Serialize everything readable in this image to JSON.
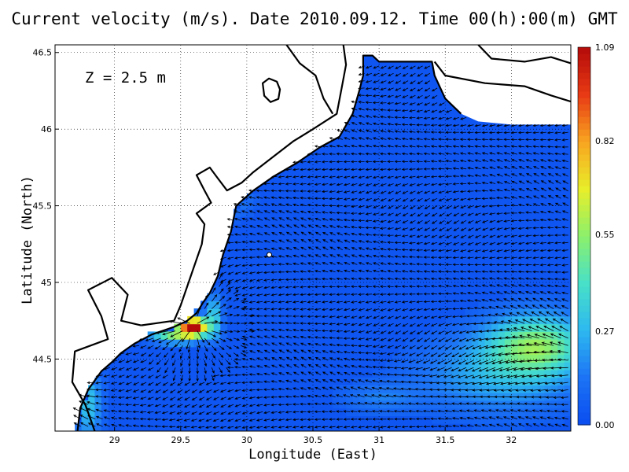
{
  "chart_data": {
    "type": "heatmap",
    "title": "Current velocity (m/s). Date 2010.09.12. Time 00(h):00(m) GMT",
    "xlabel": "Longitude (East)",
    "ylabel": "Latitude (North)",
    "annotation": "Z = 2.5 m",
    "xlim": [
      28.55,
      32.45
    ],
    "ylim": [
      44.03,
      46.55
    ],
    "x_ticks": [
      "29",
      "29.5",
      "30",
      "30.5",
      "31",
      "31.5",
      "32"
    ],
    "x_tick_values": [
      29,
      29.5,
      30,
      30.5,
      31,
      31.5,
      32
    ],
    "y_ticks": [
      "44.5",
      "45",
      "45.5",
      "46",
      "46.5"
    ],
    "y_tick_values": [
      44.5,
      45,
      45.5,
      46,
      46.5
    ],
    "grid": true,
    "colorbar": {
      "min": 0.0,
      "max": 1.09,
      "ticks": [
        "1.09",
        "0.82",
        "0.55",
        "0.27",
        "0.00"
      ],
      "tick_values": [
        1.09,
        0.82,
        0.55,
        0.27,
        0.0
      ],
      "colors": [
        "#0a4cf0",
        "#1c73f5",
        "#2db8f0",
        "#48e0c8",
        "#8cf06c",
        "#e8ee2a",
        "#f8a420",
        "#e83a14",
        "#b40a0a"
      ]
    },
    "features": {
      "max_current": {
        "lon": 29.6,
        "lat": 44.72,
        "value": 1.0
      },
      "southeast_jet": {
        "lon": 32.2,
        "lat": 44.6,
        "value": 0.45
      },
      "prevailing_flow": "westward"
    }
  }
}
